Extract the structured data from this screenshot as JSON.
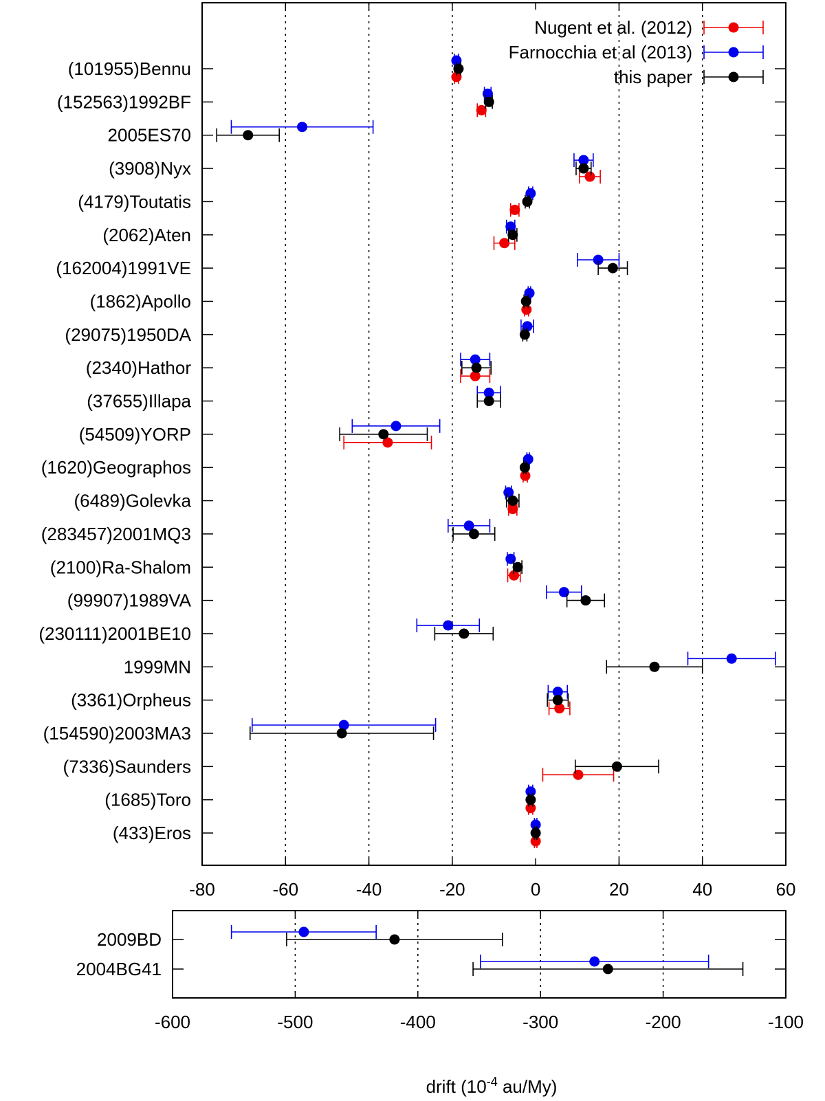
{
  "chart_data": [
    {
      "type": "scatter",
      "subtype": "horizontal-error-bars",
      "xlabel": "",
      "xlim": [
        -80,
        60
      ],
      "xticks": [
        -80,
        -60,
        -40,
        -20,
        0,
        20,
        40,
        60
      ],
      "vertical_dashed_lines_at": [
        -60,
        -40,
        -20,
        20,
        40
      ],
      "legend_position": "top-right",
      "series": [
        {
          "name": "Nugent et al. (2012)",
          "color": "#ee0000"
        },
        {
          "name": "Farnocchia et al (2013)",
          "color": "#0000ee"
        },
        {
          "name": "this paper",
          "color": "#000000"
        }
      ],
      "legend": [
        "Nugent et al. (2012)",
        "Farnocchia et al (2013)",
        "this paper"
      ],
      "categories": [
        "(101955)Bennu",
        "(152563)1992BF",
        "2005ES70",
        "(3908)Nyx",
        "(4179)Toutatis",
        "(2062)Aten",
        "(162004)1991VE",
        "(1862)Apollo",
        "(29075)1950DA",
        "(2340)Hathor",
        "(37655)Illapa",
        "(54509)YORP",
        "(1620)Geographos",
        "(6489)Golevka",
        "(283457)2001MQ3",
        "(2100)Ra-Shalom",
        "(99907)1989VA",
        "(230111)2001BE10",
        "1999MN",
        "(3361)Orpheus",
        "(154590)2003MA3",
        "(7336)Saunders",
        "(1685)Toro",
        "(433)Eros"
      ],
      "points": {
        "nugent": [
          {
            "cat": 0,
            "x": -19,
            "err": 0.5
          },
          {
            "cat": 1,
            "x": -13,
            "err": 1
          },
          {
            "cat": 3,
            "x": 13,
            "err": 2.5
          },
          {
            "cat": 4,
            "x": -5,
            "err": 1
          },
          {
            "cat": 5,
            "x": -7.5,
            "err": 2.5
          },
          {
            "cat": 7,
            "x": -2.2,
            "err": 0.5
          },
          {
            "cat": 9,
            "x": -14.5,
            "err": 3.5
          },
          {
            "cat": 11,
            "x": -35.5,
            "err": 10.5
          },
          {
            "cat": 12,
            "x": -2.5,
            "err": 0.5
          },
          {
            "cat": 13,
            "x": -5.5,
            "err": 1
          },
          {
            "cat": 15,
            "x": -5.2,
            "err": 1.5
          },
          {
            "cat": 19,
            "x": 5.7,
            "err": 2.5
          },
          {
            "cat": 21,
            "x": 10.2,
            "err": 8.5
          },
          {
            "cat": 22,
            "x": -1.2,
            "err": 0.5
          },
          {
            "cat": 23,
            "x": 0,
            "err": 0.3
          }
        ],
        "farnocchia": [
          {
            "cat": 0,
            "x": -19,
            "err": 0.5
          },
          {
            "cat": 1,
            "x": -11.5,
            "err": 0.8
          },
          {
            "cat": 2,
            "x": -56,
            "err": 17
          },
          {
            "cat": 3,
            "x": 11.5,
            "err": 2.3
          },
          {
            "cat": 4,
            "x": -1.2,
            "err": 0.5
          },
          {
            "cat": 5,
            "x": -6,
            "err": 1
          },
          {
            "cat": 6,
            "x": 15,
            "err": 5
          },
          {
            "cat": 7,
            "x": -1.5,
            "err": 0.3
          },
          {
            "cat": 8,
            "x": -2,
            "err": 1.5
          },
          {
            "cat": 9,
            "x": -14.5,
            "err": 3.5
          },
          {
            "cat": 10,
            "x": -11.2,
            "err": 2.8
          },
          {
            "cat": 11,
            "x": -33.5,
            "err": 10.5
          },
          {
            "cat": 12,
            "x": -1.8,
            "err": 0.3
          },
          {
            "cat": 13,
            "x": -6.5,
            "err": 0.7
          },
          {
            "cat": 14,
            "x": -16,
            "err": 5
          },
          {
            "cat": 15,
            "x": -6,
            "err": 0.8
          },
          {
            "cat": 16,
            "x": 6.8,
            "err": 4.2
          },
          {
            "cat": 17,
            "x": -21,
            "err": 7.5
          },
          {
            "cat": 18,
            "x": 47,
            "err": 10.5
          },
          {
            "cat": 19,
            "x": 5.3,
            "err": 2.3
          },
          {
            "cat": 20,
            "x": -46,
            "err": 22
          },
          {
            "cat": 22,
            "x": -1.2,
            "err": 0.5
          },
          {
            "cat": 23,
            "x": 0,
            "err": 0.3
          }
        ],
        "this_paper": [
          {
            "cat": 0,
            "x": -18.5,
            "err": 0.5
          },
          {
            "cat": 1,
            "x": -11.2,
            "err": 0.8
          },
          {
            "cat": 2,
            "x": -69,
            "err": 7.5
          },
          {
            "cat": 3,
            "x": 11.5,
            "err": 1.8
          },
          {
            "cat": 4,
            "x": -2,
            "err": 0.5
          },
          {
            "cat": 5,
            "x": -5.5,
            "err": 1
          },
          {
            "cat": 6,
            "x": 18.5,
            "err": 3.5
          },
          {
            "cat": 7,
            "x": -2.3,
            "err": 0.5
          },
          {
            "cat": 8,
            "x": -2.6,
            "err": 0.5
          },
          {
            "cat": 9,
            "x": -14.2,
            "err": 3.5
          },
          {
            "cat": 10,
            "x": -11.2,
            "err": 2.8
          },
          {
            "cat": 11,
            "x": -36.5,
            "err": 10.5
          },
          {
            "cat": 12,
            "x": -2.6,
            "err": 0.3
          },
          {
            "cat": 13,
            "x": -5.5,
            "err": 1.5
          },
          {
            "cat": 14,
            "x": -14.8,
            "err": 5
          },
          {
            "cat": 15,
            "x": -4.3,
            "err": 1
          },
          {
            "cat": 16,
            "x": 12,
            "err": 4.5
          },
          {
            "cat": 17,
            "x": -17.2,
            "err": 7
          },
          {
            "cat": 18,
            "x": 28.5,
            "err": 11.5
          },
          {
            "cat": 19,
            "x": 5.3,
            "err": 2.5
          },
          {
            "cat": 20,
            "x": -46.5,
            "err": 22
          },
          {
            "cat": 21,
            "x": 19.5,
            "err": 10
          },
          {
            "cat": 22,
            "x": -1.2,
            "err": 0.5
          },
          {
            "cat": 23,
            "x": 0,
            "err": 0.3
          }
        ]
      }
    },
    {
      "type": "scatter",
      "subtype": "horizontal-error-bars",
      "xlabel": "drift (10",
      "xlabel_sup": "-4",
      "xlabel_tail": " au/My)",
      "xlim": [
        -600,
        -100
      ],
      "xticks": [
        -600,
        -500,
        -400,
        -300,
        -200,
        -100
      ],
      "vertical_dashed_lines_at": [
        -500,
        -400,
        -300,
        -200
      ],
      "categories": [
        "2009BD",
        "2004BG41"
      ],
      "points": {
        "farnocchia": [
          {
            "cat": 0,
            "x": -493,
            "err": 59
          },
          {
            "cat": 1,
            "x": -256,
            "err": 93
          }
        ],
        "this_paper": [
          {
            "cat": 0,
            "x": -419,
            "err": 88
          },
          {
            "cat": 1,
            "x": -245,
            "err": 110
          }
        ]
      }
    }
  ]
}
